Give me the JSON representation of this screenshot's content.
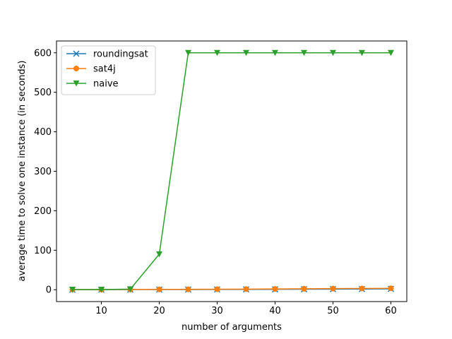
{
  "chart_data": {
    "type": "line",
    "title": "",
    "xlabel": "number of arguments",
    "ylabel": "average time to solve one instance (in seconds)",
    "x": [
      5,
      10,
      15,
      20,
      25,
      30,
      35,
      40,
      45,
      50,
      55,
      60
    ],
    "xlim": [
      2.25,
      62.75
    ],
    "ylim": [
      -30,
      630
    ],
    "xticks": [
      10,
      20,
      30,
      40,
      50,
      60
    ],
    "yticks": [
      0,
      100,
      200,
      300,
      400,
      500,
      600
    ],
    "grid": false,
    "legend_position": "top-left",
    "series": [
      {
        "name": "roundingsat",
        "marker": "x",
        "color": "#1f77b4",
        "values": [
          0.2,
          0.2,
          0.3,
          0.4,
          0.5,
          0.6,
          0.8,
          1.0,
          1.2,
          1.5,
          1.8,
          2.2
        ]
      },
      {
        "name": "sat4j",
        "marker": "circle",
        "color": "#ff7f0e",
        "values": [
          0.3,
          0.4,
          0.6,
          0.8,
          1.0,
          1.3,
          1.6,
          2.0,
          2.4,
          2.8,
          3.2,
          3.6
        ]
      },
      {
        "name": "naive",
        "marker": "triangle-down",
        "color": "#2ca02c",
        "values": [
          0.3,
          0.5,
          1.5,
          90,
          600,
          600,
          600,
          600,
          600,
          600,
          600,
          600
        ]
      }
    ]
  }
}
